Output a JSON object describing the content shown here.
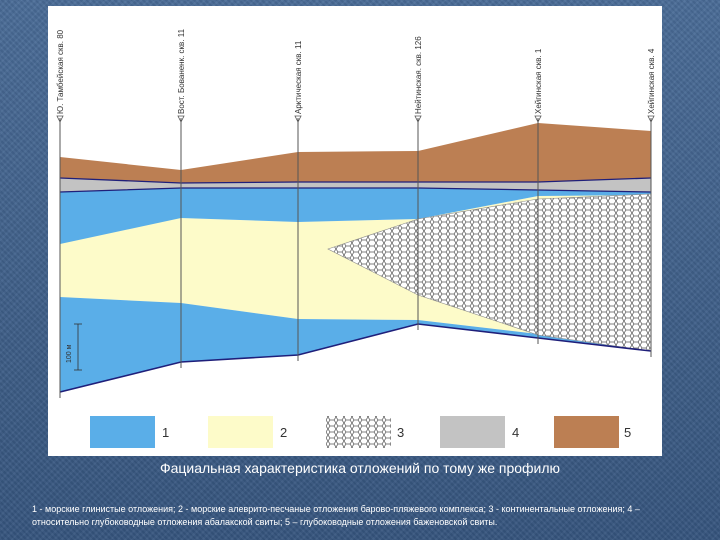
{
  "wells": [
    "Ю. Тамбейская скв. 80",
    "Вост. Бованенк. скв. 11",
    "Арктическая скв. 11",
    "Нейтинская. скв. 126",
    "Хейгинская скв. 1",
    "Хейгинская скв. 4"
  ],
  "scale_label": "100 м",
  "legend": [
    {
      "number": "1",
      "color": "#5aaee8",
      "pattern": "solid"
    },
    {
      "number": "2",
      "color": "#fdfbc9",
      "pattern": "solid"
    },
    {
      "number": "3",
      "color": "#ffffff",
      "pattern": "hexagon-mesh"
    },
    {
      "number": "4",
      "color": "#c3c3c3",
      "pattern": "solid"
    },
    {
      "number": "5",
      "color": "#bc7f53",
      "pattern": "solid"
    }
  ],
  "caption": "Фациальная характеристика отложений по тому же профилю",
  "legend_text": "1 - морские глинистые отложения; 2 - морские алеврито-песчаные отложения барово-пляжевого комплекса; 3 - континентальные отложения; 4 – относительно глубоководные отложения абалакской свиты; 5 – глубоководные отложения баженовской свиты.",
  "colors": {
    "clay": "#5aaee8",
    "sand": "#fdfbc9",
    "continental_outline": "#8a8a8a",
    "abalak": "#c3c3c3",
    "bazhenov": "#bc7f53",
    "boundary": "#1f1f7a",
    "well_line": "#555555"
  }
}
